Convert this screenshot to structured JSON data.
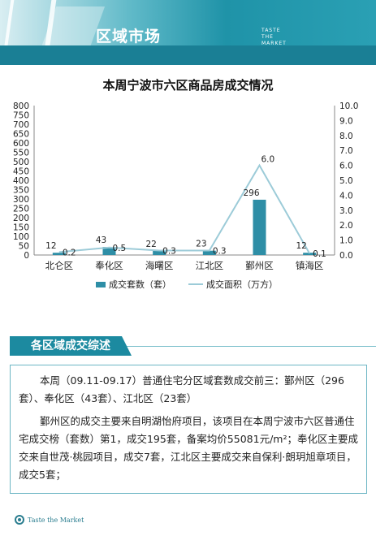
{
  "header": {
    "title": "区域市场",
    "subtitle_lines": [
      "TASTE",
      "THE",
      "MARKET"
    ]
  },
  "section": {
    "heading": "各区域成交综述"
  },
  "summary": {
    "paragraph1": "本周（09.11-09.17）普通住宅分区域套数成交前三：鄞州区（296套）、奉化区（43套）、江北区（23套）",
    "paragraph2": "鄞州区的成交主要来自明湖怡府项目，该项目在本周宁波市六区普通住宅成交榜（套数）第1，成交195套，备案均价55081元/m²；奉化区主要成交来自世茂·桃园项目，成交7套，江北区主要成交来自保利·朗玥旭章项目，成交5套；"
  },
  "footer": {
    "brand": "Taste the Market"
  },
  "colors": {
    "bar": "#2e8ea6",
    "line": "#9ccbd8",
    "accent": "#1c8aa0"
  },
  "chart_data": {
    "type": "bar",
    "title": "本周宁波市六区商品房成交情况",
    "categories": [
      "北仑区",
      "奉化区",
      "海曙区",
      "江北区",
      "鄞州区",
      "镇海区"
    ],
    "series": [
      {
        "name": "成交套数（套）",
        "type": "bar",
        "axis": "left",
        "values": [
          12,
          43,
          22,
          23,
          296,
          12
        ]
      },
      {
        "name": "成交面积（万方）",
        "type": "line",
        "axis": "right",
        "values": [
          0.2,
          0.5,
          0.3,
          0.3,
          6.0,
          0.1
        ]
      }
    ],
    "left_ticks": [
      "0",
      "50",
      "100",
      "150",
      "200",
      "250",
      "300",
      "350",
      "400",
      "450",
      "500",
      "550",
      "600",
      "650",
      "700",
      "750",
      "800"
    ],
    "right_ticks": [
      "0.0",
      "1.0",
      "2.0",
      "3.0",
      "4.0",
      "5.0",
      "6.0",
      "7.0",
      "8.0",
      "9.0",
      "10.0"
    ],
    "y_left_range": [
      0,
      800
    ],
    "y_right_range": [
      0,
      10
    ],
    "legend_position": "bottom",
    "grid": false
  }
}
